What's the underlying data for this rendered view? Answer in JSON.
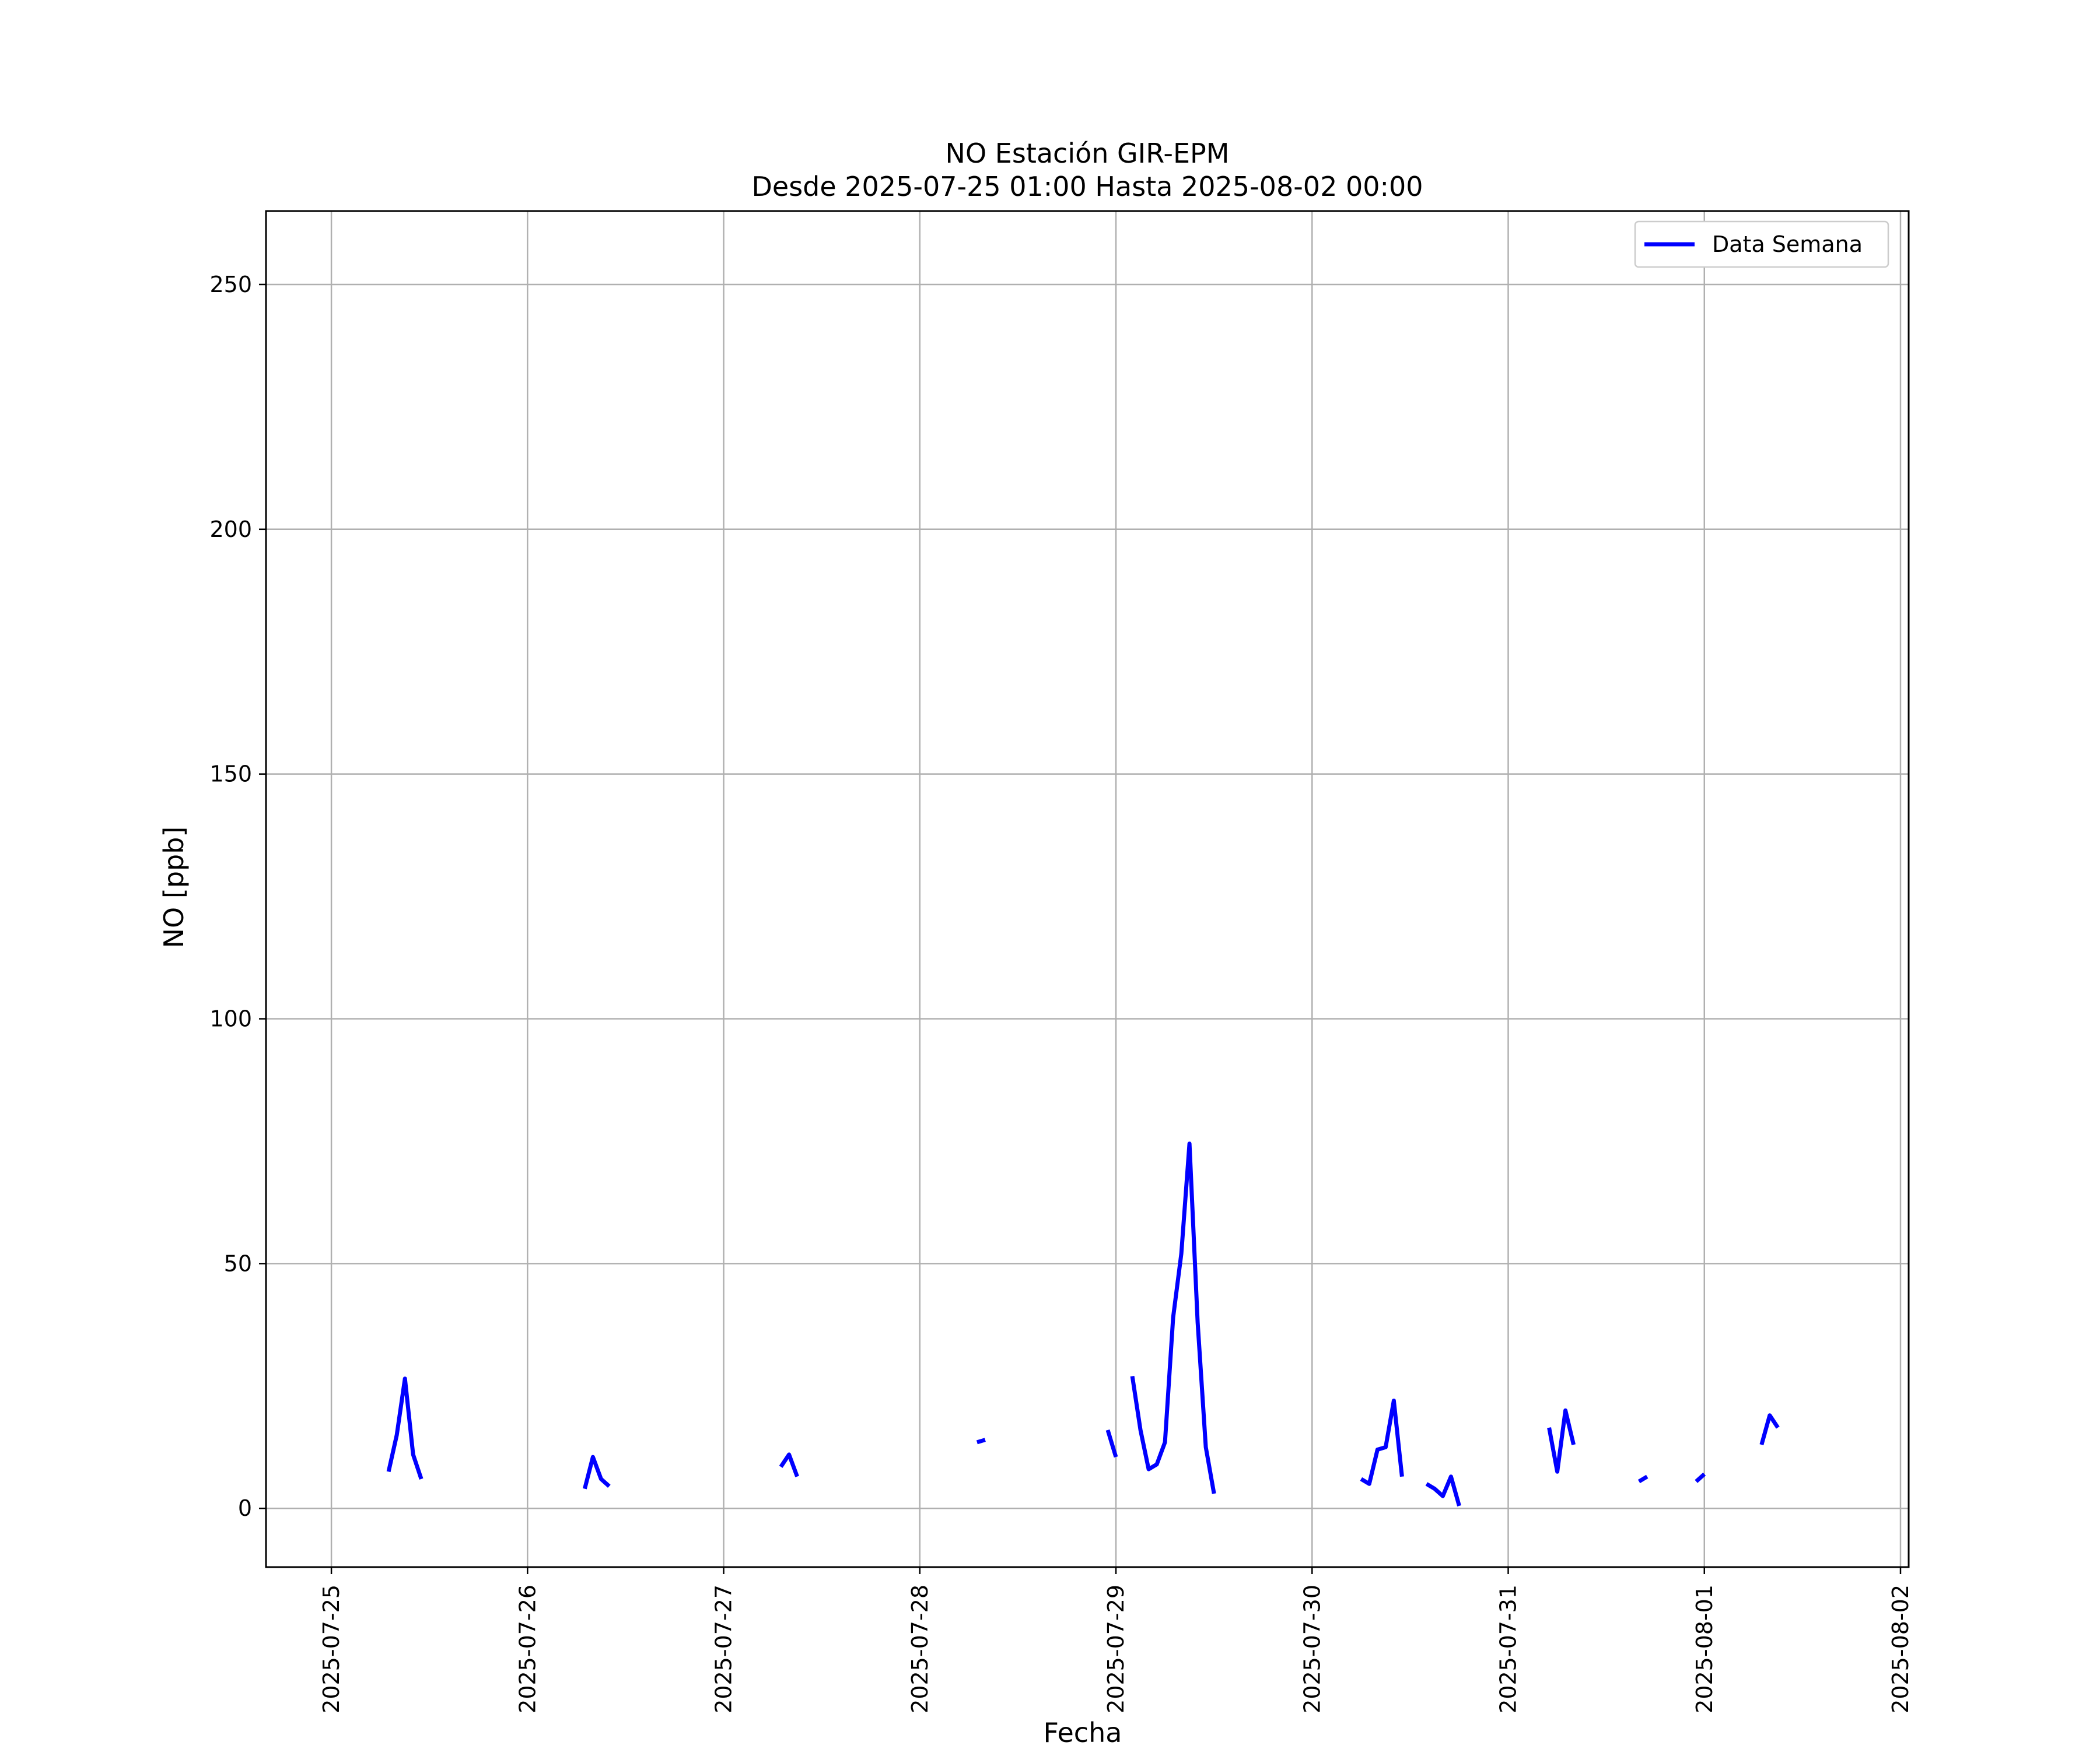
{
  "chart_data": {
    "type": "line",
    "title": [
      "NO Estación GIR-EPM",
      "Desde 2025-07-25 01:00 Hasta 2025-08-02 00:00"
    ],
    "xlabel": "Fecha",
    "ylabel": "NO [ppb]",
    "xlim": [
      "2025-07-24T16:00",
      "2025-08-02T01:00"
    ],
    "ylim": [
      -12,
      265
    ],
    "yticks": [
      0,
      50,
      100,
      150,
      200,
      250
    ],
    "xticks": [
      "2025-07-25",
      "2025-07-26",
      "2025-07-27",
      "2025-07-28",
      "2025-07-29",
      "2025-07-30",
      "2025-07-31",
      "2025-08-01",
      "2025-08-02"
    ],
    "grid": true,
    "legend_position": "top-right",
    "series": [
      {
        "name": "Data Semana",
        "color": "#0000ff",
        "segments": [
          [
            [
              "2025-07-25T07:00",
              7.5
            ],
            [
              "2025-07-25T08:00",
              15
            ],
            [
              "2025-07-25T09:00",
              26.5
            ],
            [
              "2025-07-25T10:00",
              11
            ],
            [
              "2025-07-25T11:00",
              6
            ]
          ],
          [
            [
              "2025-07-26T07:00",
              4
            ],
            [
              "2025-07-26T08:00",
              10.5
            ],
            [
              "2025-07-26T09:00",
              6
            ],
            [
              "2025-07-26T10:00",
              4.5
            ]
          ],
          [
            [
              "2025-07-27T07:00",
              8.5
            ],
            [
              "2025-07-27T08:00",
              11
            ],
            [
              "2025-07-27T09:00",
              6.5
            ]
          ],
          [
            [
              "2025-07-28T07:00",
              13.5
            ],
            [
              "2025-07-28T08:00",
              14
            ]
          ],
          [
            [
              "2025-07-28T23:00",
              16
            ],
            [
              "2025-07-29T00:00",
              10.5
            ]
          ],
          [
            [
              "2025-07-29T02:00",
              27
            ],
            [
              "2025-07-29T03:00",
              16
            ],
            [
              "2025-07-29T04:00",
              8
            ],
            [
              "2025-07-29T05:00",
              9
            ],
            [
              "2025-07-29T06:00",
              13.5
            ],
            [
              "2025-07-29T07:00",
              39
            ],
            [
              "2025-07-29T08:00",
              52
            ],
            [
              "2025-07-29T09:00",
              74.5
            ],
            [
              "2025-07-29T10:00",
              38
            ],
            [
              "2025-07-29T11:00",
              12.5
            ],
            [
              "2025-07-29T12:00",
              3
            ]
          ],
          [
            [
              "2025-07-30T06:00",
              6
            ],
            [
              "2025-07-30T07:00",
              5
            ],
            [
              "2025-07-30T08:00",
              12
            ],
            [
              "2025-07-30T09:00",
              12.5
            ],
            [
              "2025-07-30T10:00",
              22
            ],
            [
              "2025-07-30T11:00",
              6.5
            ]
          ],
          [
            [
              "2025-07-30T14:00",
              5
            ],
            [
              "2025-07-30T15:00",
              4
            ],
            [
              "2025-07-30T16:00",
              2.5
            ],
            [
              "2025-07-30T17:00",
              6.5
            ],
            [
              "2025-07-30T18:00",
              0.5
            ]
          ],
          [
            [
              "2025-07-31T05:00",
              16.5
            ],
            [
              "2025-07-31T06:00",
              7.5
            ],
            [
              "2025-07-31T07:00",
              20
            ],
            [
              "2025-07-31T08:00",
              13
            ]
          ],
          [
            [
              "2025-07-31T16:00",
              5.5
            ],
            [
              "2025-07-31T17:00",
              6.5
            ]
          ],
          [
            [
              "2025-07-31T23:00",
              5.5
            ],
            [
              "2025-08-01T00:00",
              7
            ]
          ],
          [
            [
              "2025-08-01T07:00",
              13
            ],
            [
              "2025-08-01T08:00",
              19
            ],
            [
              "2025-08-01T09:00",
              16.5
            ]
          ]
        ]
      }
    ]
  }
}
